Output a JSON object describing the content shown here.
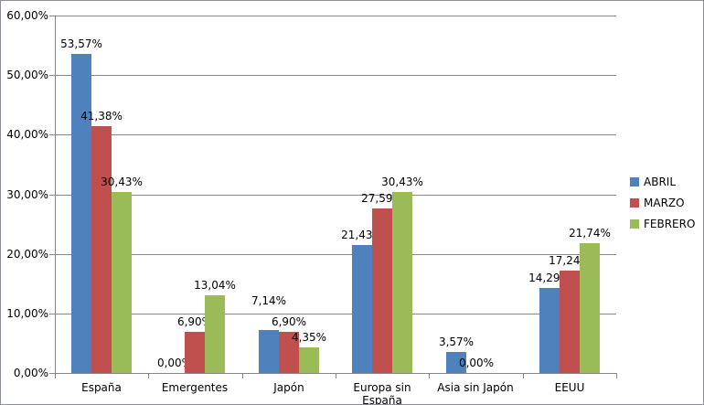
{
  "chart_data": {
    "type": "bar",
    "title": "",
    "xlabel": "",
    "ylabel": "",
    "categories": [
      "España",
      "Emergentes",
      "Japón",
      "Europa sin España",
      "Asia sin Japón",
      "EEUU"
    ],
    "series": [
      {
        "name": "ABRIL",
        "color": "#4F81BD",
        "values": [
          53.57,
          0.0,
          7.14,
          21.43,
          3.57,
          14.29
        ],
        "labels": [
          "53,57%",
          "0,00%",
          "7,14%",
          "21,43%",
          "3,57%",
          "14,29%"
        ],
        "label_offsets": [
          0,
          0,
          21,
          0,
          0,
          0
        ]
      },
      {
        "name": "MARZO",
        "color": "#C0504D",
        "values": [
          41.38,
          6.9,
          6.9,
          27.59,
          0.0,
          17.24
        ],
        "labels": [
          "41,38%",
          "6,90%",
          "6,90%",
          "27,59%",
          "0,00%",
          "17,24%"
        ],
        "label_offsets": [
          0,
          0,
          0,
          0,
          0,
          0
        ]
      },
      {
        "name": "FEBRERO",
        "color": "#9BBB59",
        "values": [
          30.43,
          13.04,
          4.35,
          30.43,
          null,
          21.74
        ],
        "labels": [
          "30,43%",
          "13,04%",
          "4,35%",
          "30,43%",
          null,
          "21,74%"
        ],
        "label_offsets": [
          0,
          0,
          0,
          0,
          0,
          0
        ]
      }
    ],
    "ylim": [
      0,
      60
    ],
    "y_ticks": [
      "0,00%",
      "10,00%",
      "20,00%",
      "30,00%",
      "40,00%",
      "50,00%",
      "60,00%"
    ],
    "grid": true,
    "legend_position": "middle-right",
    "legend": [
      "ABRIL",
      "MARZO",
      "FEBRERO"
    ],
    "colors": {
      "plot_background": "#FFFFFF",
      "gridline": "#878787",
      "axis": "#878787",
      "chart_border": "#8F9097",
      "text": "#000000"
    }
  }
}
